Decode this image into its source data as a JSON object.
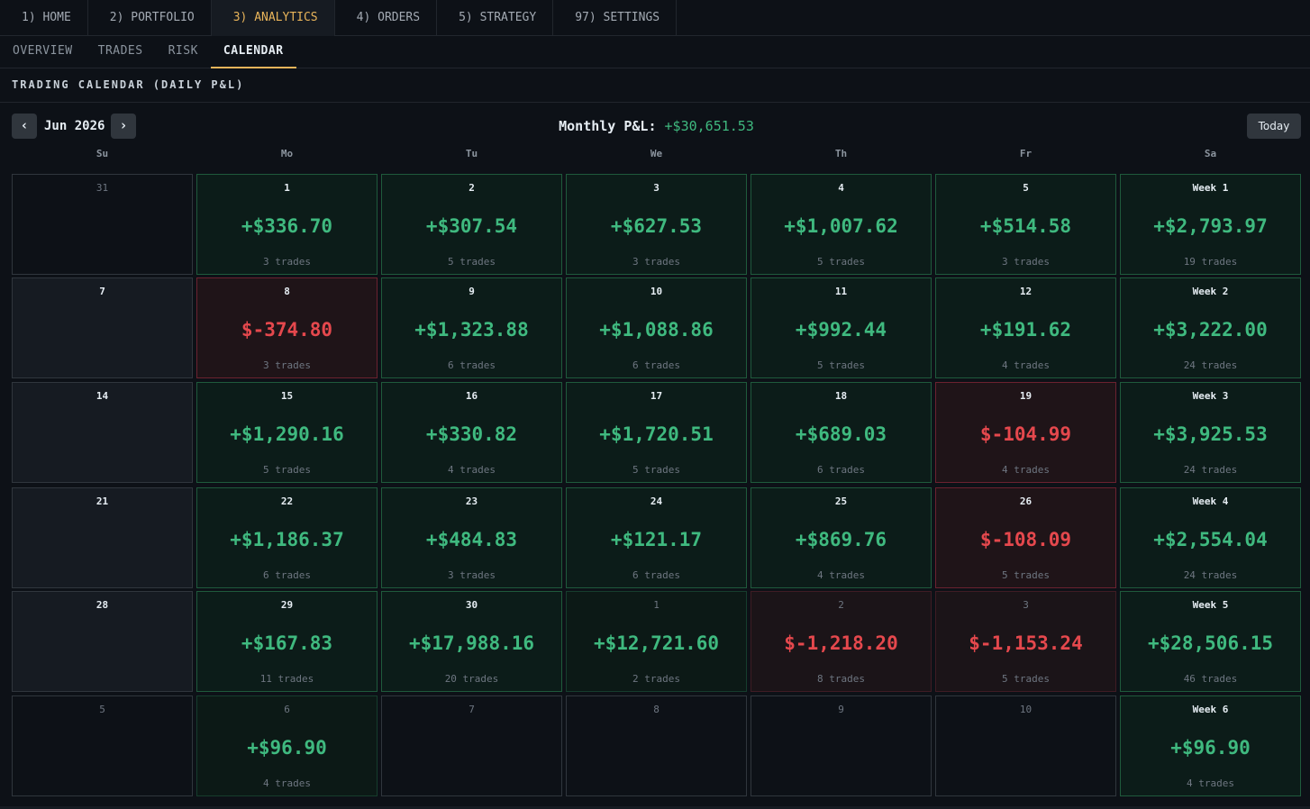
{
  "topnav": [
    {
      "label": "1) HOME",
      "active": false
    },
    {
      "label": "2) PORTFOLIO",
      "active": false
    },
    {
      "label": "3) ANALYTICS",
      "active": true
    },
    {
      "label": "4) ORDERS",
      "active": false
    },
    {
      "label": "5) STRATEGY",
      "active": false
    },
    {
      "label": "97) SETTINGS",
      "active": false
    }
  ],
  "subnav": [
    {
      "label": "OVERVIEW",
      "active": false
    },
    {
      "label": "TRADES",
      "active": false
    },
    {
      "label": "RISK",
      "active": false
    },
    {
      "label": "CALENDAR",
      "active": true
    }
  ],
  "section_title": "TRADING CALENDAR (DAILY P&L)",
  "calendar": {
    "prev_label": "‹",
    "next_label": "›",
    "month_label": "Jun 2026",
    "monthly_pnl_label": "Monthly P&L:",
    "monthly_pnl_value": "+$30,651.53",
    "today_label": "Today",
    "days_of_week": [
      "Su",
      "Mo",
      "Tu",
      "We",
      "Th",
      "Fr",
      "Sa"
    ],
    "weeks": [
      [
        {
          "day": "31",
          "kind": "other"
        },
        {
          "day": "1",
          "pnl": "+$336.70",
          "trades": "3 trades",
          "kind": "pos"
        },
        {
          "day": "2",
          "pnl": "+$307.54",
          "trades": "5 trades",
          "kind": "pos"
        },
        {
          "day": "3",
          "pnl": "+$627.53",
          "trades": "3 trades",
          "kind": "pos"
        },
        {
          "day": "4",
          "pnl": "+$1,007.62",
          "trades": "5 trades",
          "kind": "pos"
        },
        {
          "day": "5",
          "pnl": "+$514.58",
          "trades": "3 trades",
          "kind": "pos"
        },
        {
          "day": "Week 1",
          "pnl": "+$2,793.97",
          "trades": "19 trades",
          "kind": "week"
        }
      ],
      [
        {
          "day": "7",
          "kind": "empty"
        },
        {
          "day": "8",
          "pnl": "$-374.80",
          "trades": "3 trades",
          "kind": "neg"
        },
        {
          "day": "9",
          "pnl": "+$1,323.88",
          "trades": "6 trades",
          "kind": "pos"
        },
        {
          "day": "10",
          "pnl": "+$1,088.86",
          "trades": "6 trades",
          "kind": "pos"
        },
        {
          "day": "11",
          "pnl": "+$992.44",
          "trades": "5 trades",
          "kind": "pos"
        },
        {
          "day": "12",
          "pnl": "+$191.62",
          "trades": "4 trades",
          "kind": "pos"
        },
        {
          "day": "Week 2",
          "pnl": "+$3,222.00",
          "trades": "24 trades",
          "kind": "week"
        }
      ],
      [
        {
          "day": "14",
          "kind": "empty"
        },
        {
          "day": "15",
          "pnl": "+$1,290.16",
          "trades": "5 trades",
          "kind": "pos"
        },
        {
          "day": "16",
          "pnl": "+$330.82",
          "trades": "4 trades",
          "kind": "pos"
        },
        {
          "day": "17",
          "pnl": "+$1,720.51",
          "trades": "5 trades",
          "kind": "pos"
        },
        {
          "day": "18",
          "pnl": "+$689.03",
          "trades": "6 trades",
          "kind": "pos"
        },
        {
          "day": "19",
          "pnl": "$-104.99",
          "trades": "4 trades",
          "kind": "neg"
        },
        {
          "day": "Week 3",
          "pnl": "+$3,925.53",
          "trades": "24 trades",
          "kind": "week"
        }
      ],
      [
        {
          "day": "21",
          "kind": "empty"
        },
        {
          "day": "22",
          "pnl": "+$1,186.37",
          "trades": "6 trades",
          "kind": "pos"
        },
        {
          "day": "23",
          "pnl": "+$484.83",
          "trades": "3 trades",
          "kind": "pos"
        },
        {
          "day": "24",
          "pnl": "+$121.17",
          "trades": "6 trades",
          "kind": "pos"
        },
        {
          "day": "25",
          "pnl": "+$869.76",
          "trades": "4 trades",
          "kind": "pos"
        },
        {
          "day": "26",
          "pnl": "$-108.09",
          "trades": "5 trades",
          "kind": "neg"
        },
        {
          "day": "Week 4",
          "pnl": "+$2,554.04",
          "trades": "24 trades",
          "kind": "week"
        }
      ],
      [
        {
          "day": "28",
          "kind": "empty"
        },
        {
          "day": "29",
          "pnl": "+$167.83",
          "trades": "11 trades",
          "kind": "pos"
        },
        {
          "day": "30",
          "pnl": "+$17,988.16",
          "trades": "20 trades",
          "kind": "pos"
        },
        {
          "day": "1",
          "pnl": "+$12,721.60",
          "trades": "2 trades",
          "kind": "pos-dim"
        },
        {
          "day": "2",
          "pnl": "$-1,218.20",
          "trades": "8 trades",
          "kind": "neg-dim"
        },
        {
          "day": "3",
          "pnl": "$-1,153.24",
          "trades": "5 trades",
          "kind": "neg-dim"
        },
        {
          "day": "Week 5",
          "pnl": "+$28,506.15",
          "trades": "46 trades",
          "kind": "week"
        }
      ],
      [
        {
          "day": "5",
          "kind": "other"
        },
        {
          "day": "6",
          "pnl": "+$96.90",
          "trades": "4 trades",
          "kind": "pos-dim"
        },
        {
          "day": "7",
          "kind": "other"
        },
        {
          "day": "8",
          "kind": "other"
        },
        {
          "day": "9",
          "kind": "other"
        },
        {
          "day": "10",
          "kind": "other"
        },
        {
          "day": "Week 6",
          "pnl": "+$96.90",
          "trades": "4 trades",
          "kind": "week"
        }
      ]
    ]
  }
}
